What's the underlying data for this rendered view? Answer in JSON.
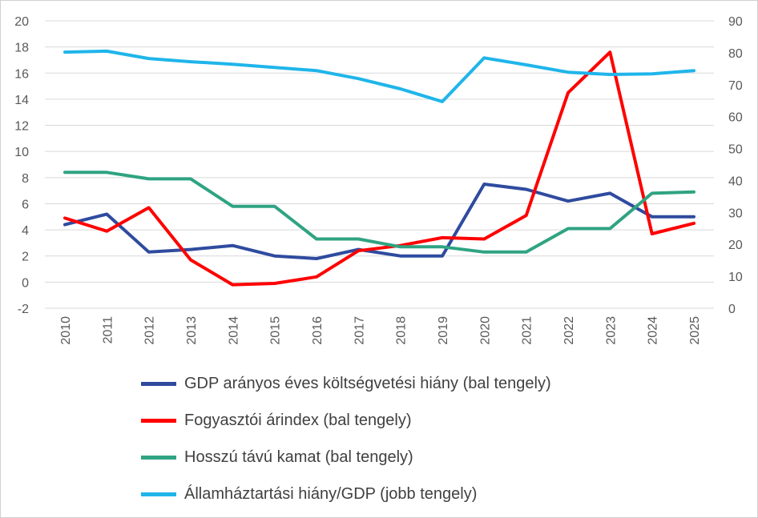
{
  "chart_data": {
    "type": "line",
    "title": "",
    "x": [
      "2010",
      "2011",
      "2012",
      "2013",
      "2014",
      "2015",
      "2016",
      "2017",
      "2018",
      "2019",
      "2020",
      "2021",
      "2022",
      "2023",
      "2024",
      "2025"
    ],
    "y_left": {
      "ylim": [
        -2,
        20
      ],
      "ticks": [
        "-2",
        "0",
        "2",
        "4",
        "6",
        "8",
        "10",
        "12",
        "14",
        "16",
        "18",
        "20"
      ]
    },
    "y_right": {
      "ylim": [
        0,
        90
      ],
      "ticks": [
        "0",
        "10",
        "20",
        "30",
        "40",
        "50",
        "60",
        "70",
        "80",
        "90"
      ]
    },
    "grid": true,
    "legend_position": "bottom",
    "series": [
      {
        "name": "GDP arányos éves költségvetési hiány (bal tengely)",
        "axis": "left",
        "color": "#2f4b9f",
        "values": [
          4.4,
          5.2,
          2.3,
          2.5,
          2.8,
          2.0,
          1.8,
          2.5,
          2.0,
          2.0,
          7.5,
          7.1,
          6.2,
          6.8,
          5.0,
          5.0
        ]
      },
      {
        "name": "Fogyasztói árindex (bal tengely)",
        "axis": "left",
        "color": "#ff0000",
        "values": [
          4.9,
          3.9,
          5.7,
          1.7,
          -0.2,
          -0.1,
          0.4,
          2.4,
          2.8,
          3.4,
          3.3,
          5.1,
          14.5,
          17.6,
          3.7,
          4.5
        ]
      },
      {
        "name": "Hosszú távú kamat (bal tengely)",
        "axis": "left",
        "color": "#2fa382",
        "values": [
          8.4,
          8.4,
          7.9,
          7.9,
          5.8,
          5.8,
          3.3,
          3.3,
          2.7,
          2.7,
          2.3,
          2.3,
          4.1,
          4.1,
          6.8,
          6.9
        ]
      },
      {
        "name": "Államháztartási hiány/GDP (jobb tengely)",
        "axis": "right",
        "color": "#1fb5ea",
        "values": [
          80.2,
          80.5,
          78.2,
          77.2,
          76.4,
          75.4,
          74.4,
          71.9,
          68.7,
          64.7,
          78.4,
          76.2,
          73.9,
          73.2,
          73.4,
          74.4
        ]
      }
    ]
  }
}
